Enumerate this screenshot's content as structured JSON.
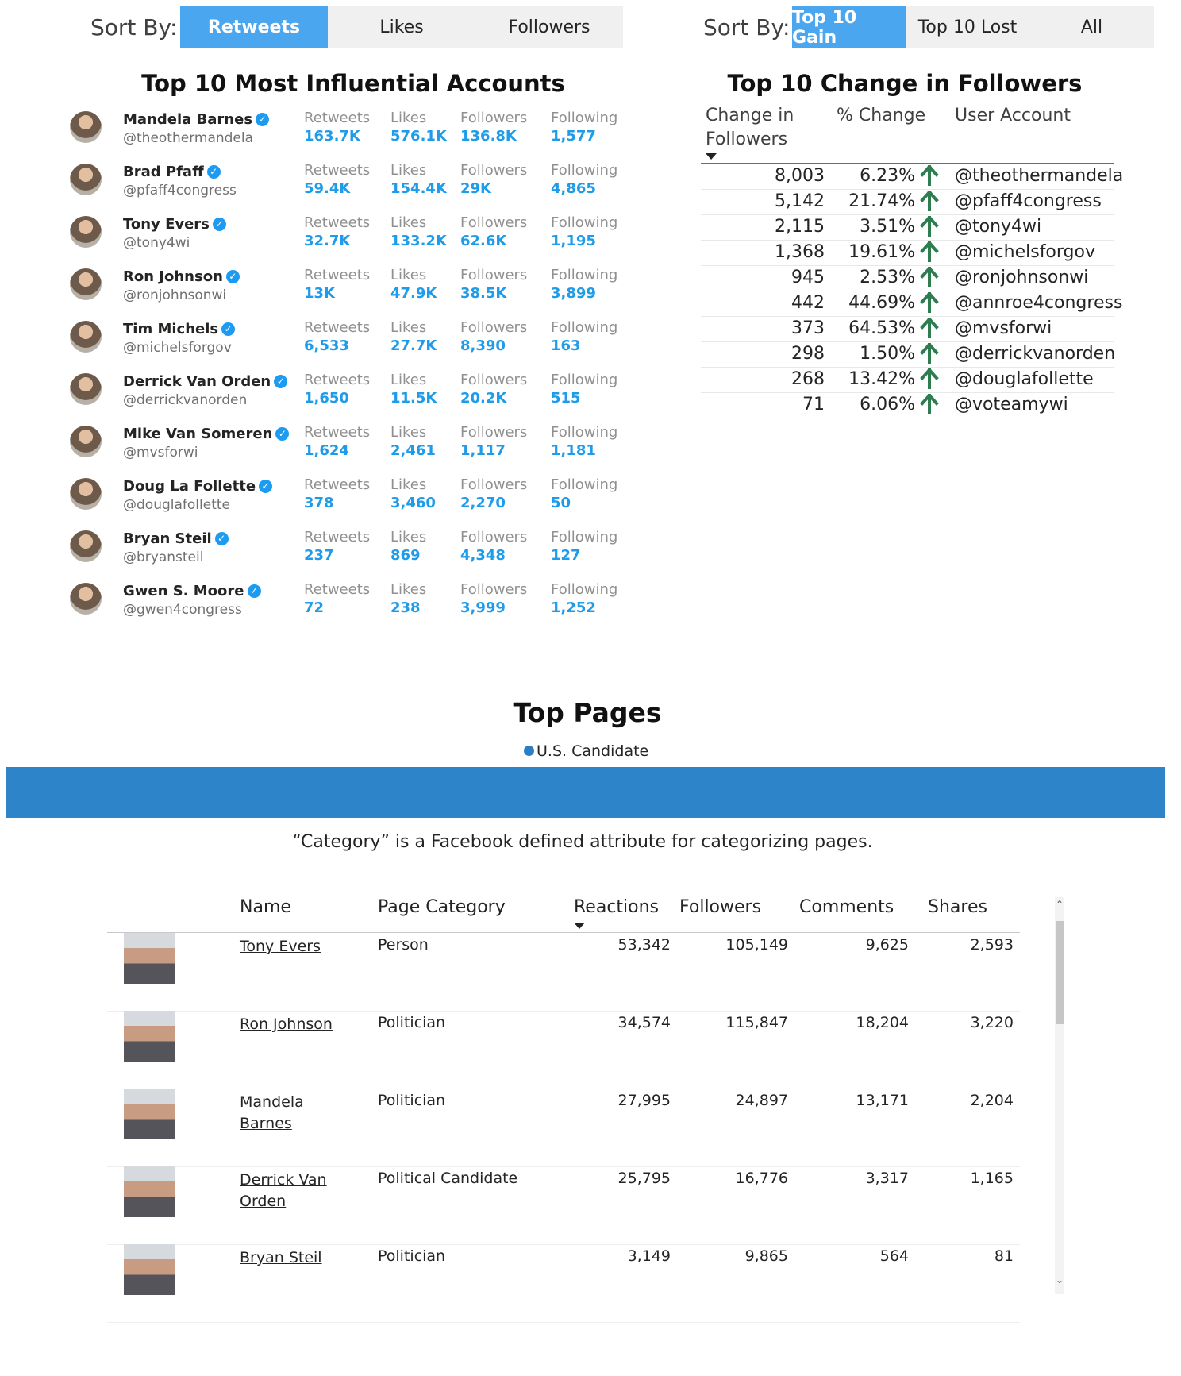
{
  "left_sort": {
    "label": "Sort By:",
    "buttons": [
      {
        "label": "Retweets",
        "active": true
      },
      {
        "label": "Likes",
        "active": false
      },
      {
        "label": "Followers",
        "active": false
      }
    ]
  },
  "right_sort": {
    "label": "Sort By:",
    "buttons": [
      {
        "label": "Top 10 Gain",
        "active": true
      },
      {
        "label": "Top 10 Lost",
        "active": false
      },
      {
        "label": "All",
        "active": false
      }
    ]
  },
  "influential": {
    "title": "Top 10 Most Influential Accounts",
    "metric_labels": {
      "retweets": "Retweets",
      "likes": "Likes",
      "followers": "Followers",
      "following": "Following"
    },
    "accounts": [
      {
        "name": "Mandela Barnes",
        "handle": "@theothermandela",
        "retweets": "163.7K",
        "likes": "576.1K",
        "followers": "136.8K",
        "following": "1,577"
      },
      {
        "name": "Brad Pfaff",
        "handle": "@pfaff4congress",
        "retweets": "59.4K",
        "likes": "154.4K",
        "followers": "29K",
        "following": "4,865"
      },
      {
        "name": "Tony Evers",
        "handle": "@tony4wi",
        "retweets": "32.7K",
        "likes": "133.2K",
        "followers": "62.6K",
        "following": "1,195"
      },
      {
        "name": "Ron Johnson",
        "handle": "@ronjohnsonwi",
        "retweets": "13K",
        "likes": "47.9K",
        "followers": "38.5K",
        "following": "3,899"
      },
      {
        "name": "Tim Michels",
        "handle": "@michelsforgov",
        "retweets": "6,533",
        "likes": "27.7K",
        "followers": "8,390",
        "following": "163"
      },
      {
        "name": "Derrick Van Orden",
        "handle": "@derrickvanorden",
        "retweets": "1,650",
        "likes": "11.5K",
        "followers": "20.2K",
        "following": "515"
      },
      {
        "name": "Mike Van Someren",
        "handle": "@mvsforwi",
        "retweets": "1,624",
        "likes": "2,461",
        "followers": "1,117",
        "following": "1,181"
      },
      {
        "name": "Doug La Follette",
        "handle": "@douglafollette",
        "retweets": "378",
        "likes": "3,460",
        "followers": "2,270",
        "following": "50"
      },
      {
        "name": "Bryan Steil",
        "handle": "@bryansteil",
        "retweets": "237",
        "likes": "869",
        "followers": "4,348",
        "following": "127"
      },
      {
        "name": "Gwen S. Moore",
        "handle": "@gwen4congress",
        "retweets": "72",
        "likes": "238",
        "followers": "3,999",
        "following": "1,252"
      }
    ]
  },
  "change": {
    "title": "Top 10 Change in Followers",
    "headers": {
      "change_line1": "Change in",
      "change_line2": "Followers",
      "pct": "% Change",
      "account": "User Account"
    },
    "rows": [
      {
        "change": "8,003",
        "pct": "6.23%",
        "account": "@theothermandela"
      },
      {
        "change": "5,142",
        "pct": "21.74%",
        "account": "@pfaff4congress"
      },
      {
        "change": "2,115",
        "pct": "3.51%",
        "account": "@tony4wi"
      },
      {
        "change": "1,368",
        "pct": "19.61%",
        "account": "@michelsforgov"
      },
      {
        "change": "945",
        "pct": "2.53%",
        "account": "@ronjohnsonwi"
      },
      {
        "change": "442",
        "pct": "44.69%",
        "account": "@annroe4congress"
      },
      {
        "change": "373",
        "pct": "64.53%",
        "account": "@mvsforwi"
      },
      {
        "change": "298",
        "pct": "1.50%",
        "account": "@derrickvanorden"
      },
      {
        "change": "268",
        "pct": "13.42%",
        "account": "@douglafollette"
      },
      {
        "change": "71",
        "pct": "6.06%",
        "account": "@voteamywi"
      }
    ],
    "arrow_color": "#2e7d4f"
  },
  "top_pages": {
    "title": "Top Pages",
    "legend": "U.S. Candidate",
    "band_color": "#2d84c8",
    "note": "“Category” is a Facebook defined attribute for categorizing pages.",
    "columns": {
      "name": "Name",
      "category": "Page Category",
      "reactions": "Reactions",
      "followers": "Followers",
      "comments": "Comments",
      "shares": "Shares"
    },
    "rows": [
      {
        "name": "Tony Evers",
        "category": "Person",
        "reactions": "53,342",
        "followers": "105,149",
        "comments": "9,625",
        "shares": "2,593"
      },
      {
        "name": "Ron Johnson",
        "category": "Politician",
        "reactions": "34,574",
        "followers": "115,847",
        "comments": "18,204",
        "shares": "3,220"
      },
      {
        "name": "Mandela Barnes",
        "category": "Politician",
        "reactions": "27,995",
        "followers": "24,897",
        "comments": "13,171",
        "shares": "2,204"
      },
      {
        "name": "Derrick Van Orden",
        "category": "Political Candidate",
        "reactions": "25,795",
        "followers": "16,776",
        "comments": "3,317",
        "shares": "1,165"
      },
      {
        "name": "Bryan Steil",
        "category": "Politician",
        "reactions": "3,149",
        "followers": "9,865",
        "comments": "564",
        "shares": "81"
      }
    ]
  },
  "colors": {
    "accent": "#4ba6f0",
    "metric_value": "#1e9be9",
    "verified": "#1d9bf0"
  }
}
